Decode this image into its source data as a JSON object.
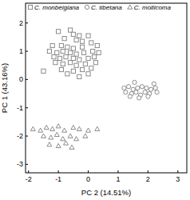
{
  "chart_data": {
    "type": "scatter",
    "x_label": "PC 2 (14.51%)",
    "y_label": "PC 1 (43.16%)",
    "xlim": [
      -2.1,
      3.3
    ],
    "ylim": [
      -3.3,
      2.7
    ],
    "xticks": [
      -2,
      -1,
      0,
      1,
      2,
      3
    ],
    "yticks": [
      -3,
      -2,
      -1,
      0,
      1,
      2
    ],
    "legend": "top",
    "series": [
      {
        "name": "C. monbeigiana",
        "color": "#7f7f7f",
        "marker": "square",
        "x": [
          -1.0,
          -0.6,
          -0.5,
          -0.3,
          0.0,
          -0.8,
          -0.4,
          -0.2,
          0.1,
          -1.2,
          -0.9,
          -0.7,
          -0.5,
          -0.2,
          0.3,
          -1.3,
          -1.05,
          -0.85,
          -0.6,
          -0.4,
          -0.15,
          0.15,
          0.35,
          -1.15,
          -0.95,
          -0.75,
          -0.5,
          -0.3,
          0.0,
          0.2,
          -1.1,
          -0.85,
          -0.6,
          -0.4,
          -0.1,
          0.25,
          -1.5,
          -0.9,
          -0.5,
          -0.2,
          0.1,
          -0.7,
          -0.3,
          0.0
        ],
        "values": [
          1.7,
          1.75,
          1.6,
          1.55,
          1.55,
          1.45,
          1.4,
          1.35,
          1.3,
          1.2,
          1.2,
          1.15,
          1.1,
          1.15,
          1.2,
          1.0,
          0.95,
          1.0,
          0.95,
          0.9,
          0.95,
          1.0,
          0.95,
          0.8,
          0.75,
          0.8,
          0.75,
          0.7,
          0.75,
          0.8,
          0.6,
          0.55,
          0.6,
          0.5,
          0.55,
          0.6,
          0.3,
          0.35,
          0.3,
          0.35,
          0.4,
          0.2,
          0.1,
          0.2
        ]
      },
      {
        "name": "C. tibetana",
        "color": "#7f7f7f",
        "marker": "circle",
        "x": [
          1.2,
          1.35,
          1.5,
          1.65,
          1.8,
          1.95,
          2.1,
          2.25,
          1.25,
          1.45,
          1.6,
          1.75,
          1.9,
          2.05,
          2.3,
          1.4,
          1.7,
          2.0,
          2.2,
          1.55
        ],
        "values": [
          -0.3,
          -0.25,
          -0.35,
          -0.3,
          -0.25,
          -0.3,
          -0.35,
          -0.3,
          -0.45,
          -0.5,
          -0.45,
          -0.55,
          -0.45,
          -0.5,
          -0.45,
          -0.6,
          -0.65,
          -0.6,
          -0.15,
          -0.1
        ]
      },
      {
        "name": "C. mollicoma",
        "color": "#7f7f7f",
        "marker": "triangle",
        "x": [
          -1.85,
          -1.6,
          -1.4,
          -1.2,
          -1.0,
          -0.8,
          -0.5,
          -0.3,
          0.0,
          0.3,
          -1.5,
          -1.25,
          -1.05,
          -0.85,
          -0.6,
          -0.4,
          -0.1,
          -1.3,
          -1.0,
          -0.75,
          -0.55
        ],
        "values": [
          -1.75,
          -1.8,
          -1.7,
          -1.75,
          -1.65,
          -1.8,
          -1.7,
          -1.75,
          -1.8,
          -1.75,
          -2.0,
          -2.05,
          -1.95,
          -2.1,
          -2.0,
          -2.1,
          -2.0,
          -2.3,
          -2.35,
          -2.25,
          -2.4
        ]
      }
    ]
  }
}
